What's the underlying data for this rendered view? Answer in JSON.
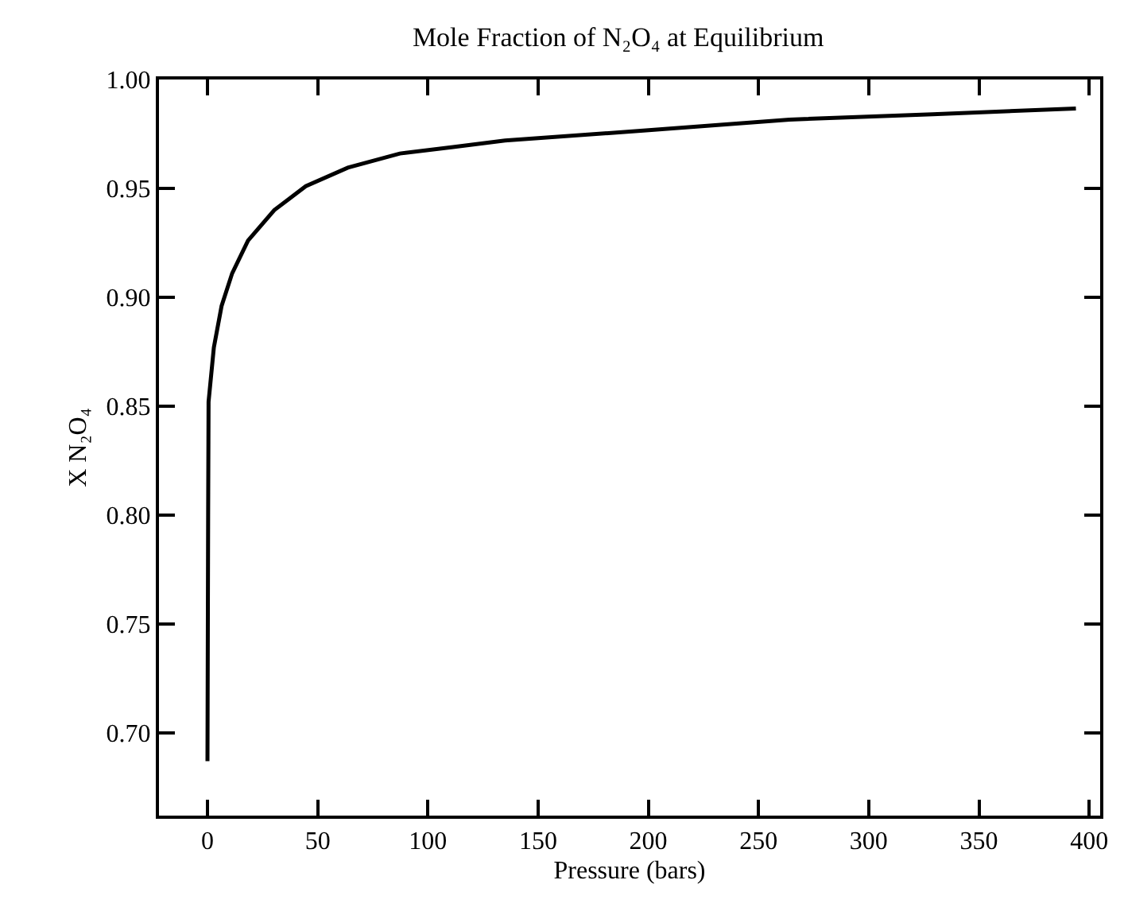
{
  "chart_data": {
    "type": "line",
    "title": "Mole Fraction of N₂O₄ at Equilibrium",
    "xlabel": "Pressure (bars)",
    "ylabel": "X N₂O₄",
    "x": [
      0,
      0.3,
      0.5,
      2.9,
      6.4,
      11.2,
      18.4,
      30.3,
      44.6,
      63.7,
      87.3,
      111.4,
      135,
      199,
      264,
      329,
      394
    ],
    "series": [
      {
        "color": "#000000",
        "values": [
          0.687,
          0.8,
          0.852,
          0.877,
          0.896,
          0.911,
          0.926,
          0.94,
          0.951,
          0.9595,
          0.966,
          0.969,
          0.972,
          0.9766,
          0.9816,
          0.984,
          0.9867
        ]
      }
    ],
    "xlim": [
      -22,
      405
    ],
    "xticks": [
      0,
      50,
      100,
      150,
      200,
      250,
      300,
      350,
      400
    ],
    "ylim": [
      0.662,
      1.0
    ],
    "yticks": [
      {
        "value": 0.7,
        "label": "0.70"
      },
      {
        "value": 0.75,
        "label": "0.75"
      },
      {
        "value": 0.8,
        "label": "0.80"
      },
      {
        "value": 0.85,
        "label": "0.85"
      },
      {
        "value": 0.9,
        "label": "0.90"
      },
      {
        "value": 0.95,
        "label": "0.95"
      },
      {
        "value": 1.0,
        "label": "1.00"
      }
    ],
    "marker": "none",
    "line_style": "solid"
  }
}
